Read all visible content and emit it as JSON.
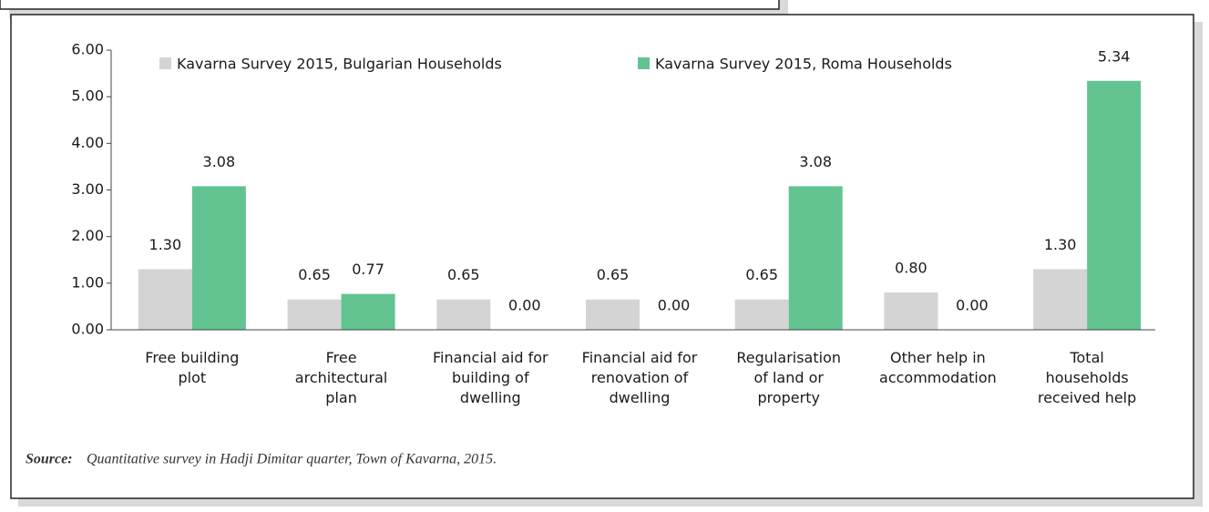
{
  "chart_data": {
    "type": "bar",
    "categories": [
      "Free building\nplot",
      "Free\narchitectural\nplan",
      "Financial aid for\nbuilding of\ndwelling",
      "Financial aid for\nrenovation of\ndwelling",
      "Regularisation\nof land or\nproperty",
      "Other help in\naccommodation",
      "Total\nhouseholds\nreceived help"
    ],
    "series": [
      {
        "name": "Kavarna Survey 2015, Bulgarian Households",
        "color": "#d4d4d4",
        "values": [
          1.3,
          0.65,
          0.65,
          0.65,
          0.65,
          0.8,
          1.3
        ],
        "value_labels": [
          "1.30",
          "0.65",
          "0.65",
          "0.65",
          "0.65",
          "0.80",
          "1.30"
        ]
      },
      {
        "name": "Kavarna Survey 2015, Roma Households",
        "color": "#62c391",
        "values": [
          3.08,
          0.77,
          0,
          0,
          3.08,
          0,
          5.34
        ],
        "value_labels": [
          "3.08",
          "0.77",
          "0.00",
          "0.00",
          "3.08",
          "0.00",
          "5.34"
        ]
      }
    ],
    "ylim": [
      0,
      6
    ],
    "yticks": [
      {
        "value": 0,
        "label": "0.00"
      },
      {
        "value": 1,
        "label": "1.00"
      },
      {
        "value": 2,
        "label": "2.00"
      },
      {
        "value": 3,
        "label": "3.00"
      },
      {
        "value": 4,
        "label": "4.00"
      },
      {
        "value": 5,
        "label": "5.00"
      },
      {
        "value": 6,
        "label": "6.00"
      }
    ],
    "source_label": "Source:",
    "source": "Quantitative survey in Hadji Dimitar quarter, Town of Kavarna, 2015."
  }
}
